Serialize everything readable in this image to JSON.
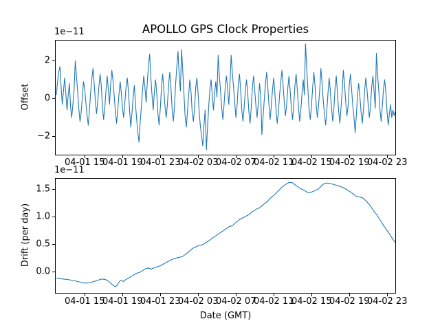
{
  "figure": {
    "background": "#ffffff",
    "text_color": "#000000",
    "line_color": "#1f77b4"
  },
  "chart_data": [
    {
      "type": "line",
      "title": "APOLLO GPS Clock Properties",
      "ylabel": "Offset",
      "y_offset_text": "1e−11",
      "y_unit_multiplier": 1e-11,
      "legend": "none",
      "grid": false,
      "x_axis": {
        "t_origin": "04-01 12:00 (GMT)",
        "t_unit": "hours",
        "t_start": 0,
        "t_end": 36,
        "tick_hours": [
          3,
          7,
          11,
          15,
          19,
          23,
          27,
          31,
          35
        ],
        "tick_labels": [
          "04-01 15",
          "04-01 19",
          "04-01 23",
          "04-02 03",
          "04-02 07",
          "04-02 11",
          "04-02 15",
          "04-02 19",
          "04-02 23"
        ]
      },
      "y_axis": {
        "lim": [
          -2.95,
          3.15
        ],
        "ticks": [
          {
            "v": 2,
            "label": "2"
          },
          {
            "v": 0,
            "label": "0"
          },
          {
            "v": -2,
            "label": "−2"
          }
        ]
      },
      "values": [
        0.2,
        0.9,
        1.4,
        1.7,
        0.6,
        -0.3,
        0.4,
        1.1,
        0.3,
        -0.6,
        0.2,
        0.8,
        -0.4,
        -1.0,
        -0.3,
        0.5,
        2.0,
        1.2,
        0.4,
        -0.5,
        -1.2,
        -0.7,
        0.1,
        0.9,
        0.5,
        -0.2,
        -0.9,
        -1.4,
        -0.6,
        0.3,
        1.0,
        1.6,
        0.8,
        -0.1,
        -0.8,
        -0.2,
        0.6,
        1.3,
        0.7,
        -0.4,
        -1.1,
        -0.5,
        0.4,
        1.2,
        0.5,
        -0.3,
        0.8,
        1.5,
        0.9,
        0.1,
        -0.7,
        -1.3,
        -0.6,
        0.2,
        0.9,
        0.3,
        -0.5,
        -1.0,
        -0.2,
        0.6,
        1.1,
        0.4,
        -0.6,
        -1.5,
        -0.8,
        0.1,
        0.7,
        -0.3,
        -1.1,
        -1.8,
        -2.3,
        -1.2,
        -0.4,
        0.5,
        1.2,
        0.6,
        -0.2,
        0.9,
        1.8,
        2.35,
        1.1,
        0.2,
        -0.6,
        0.4,
        1.0,
        0.3,
        -0.8,
        -1.4,
        -0.5,
        0.6,
        1.3,
        0.5,
        -0.4,
        -1.0,
        -0.3,
        0.7,
        1.4,
        0.6,
        -0.5,
        -1.2,
        -0.4,
        0.8,
        1.7,
        2.5,
        1.3,
        0.4,
        2.6,
        1.5,
        0.3,
        -0.9,
        -1.5,
        -0.7,
        0.2,
        1.0,
        0.4,
        -0.7,
        -1.2,
        -0.5,
        0.6,
        1.1,
        0.3,
        -0.8,
        -1.5,
        -2.0,
        -2.5,
        -1.4,
        -0.6,
        -2.7,
        -1.5,
        -0.4,
        0.5,
        1.0,
        0.2,
        -0.6,
        0.3,
        0.9,
        0.1,
        2.3,
        1.2,
        0.4,
        -0.5,
        -1.1,
        -0.3,
        0.6,
        1.2,
        0.5,
        -0.3,
        0.8,
        2.3,
        1.4,
        0.6,
        -0.2,
        -1.0,
        -0.4,
        0.7,
        1.3,
        0.5,
        -0.6,
        -1.2,
        -0.5,
        0.4,
        1.0,
        0.3,
        -0.7,
        -1.3,
        -0.5,
        0.6,
        1.2,
        0.4,
        -0.4,
        -1.0,
        -0.2,
        0.8,
        0.2,
        -1.9,
        -1.0,
        -0.1,
        0.7,
        1.4,
        0.6,
        -0.3,
        -1.1,
        -0.4,
        0.5,
        1.1,
        0.3,
        -0.6,
        -1.3,
        -0.7,
        0.2,
        0.9,
        1.5,
        0.7,
        -0.2,
        -0.9,
        -0.3,
        0.6,
        1.2,
        0.4,
        -0.5,
        -1.1,
        -0.3,
        0.7,
        1.3,
        0.5,
        -0.4,
        -1.2,
        -0.6,
        0.3,
        1.0,
        0.2,
        2.9,
        1.6,
        0.5,
        -0.6,
        -1.1,
        -0.4,
        0.6,
        1.4,
        0.7,
        -0.3,
        -1.0,
        -0.4,
        0.5,
        1.6,
        0.8,
        -0.1,
        -0.8,
        -1.4,
        -0.6,
        0.3,
        1.1,
        0.4,
        -0.5,
        -1.2,
        -0.5,
        0.6,
        1.2,
        0.3,
        -0.6,
        -1.3,
        -0.5,
        0.4,
        1.5,
        0.8,
        -0.2,
        -0.9,
        -0.4,
        0.7,
        1.3,
        0.5,
        -0.4,
        -1.0,
        -1.8,
        -0.9,
        0.2,
        0.8,
        0.1,
        -0.7,
        -1.3,
        -0.6,
        0.4,
        1.1,
        0.5,
        -0.3,
        -1.0,
        -0.4,
        0.6,
        1.2,
        0.4,
        -0.5,
        2.4,
        1.3,
        0.4,
        -0.6,
        -1.2,
        -0.4,
        0.5,
        1.0,
        0.3,
        -0.7,
        -1.4,
        -0.8,
        -0.3,
        -1.0,
        -0.6,
        -0.9,
        -0.7
      ],
      "line_color": "#1f77b4"
    },
    {
      "type": "line",
      "ylabel": "Drift (per day)",
      "xlabel": "Date (GMT)",
      "y_offset_text": "1e−11",
      "y_unit_multiplier": 1e-11,
      "legend": "none",
      "grid": false,
      "x_axis": {
        "t_origin": "04-01 12:00 (GMT)",
        "t_unit": "hours",
        "t_start": 0,
        "t_end": 36,
        "tick_hours": [
          3,
          7,
          11,
          15,
          19,
          23,
          27,
          31,
          35
        ],
        "tick_labels": [
          "04-01 15",
          "04-01 19",
          "04-01 23",
          "04-02 03",
          "04-02 07",
          "04-02 11",
          "04-02 15",
          "04-02 19",
          "04-02 23"
        ]
      },
      "y_axis": {
        "lim": [
          -0.4,
          1.7
        ],
        "ticks": [
          {
            "v": 1.5,
            "label": "1.5"
          },
          {
            "v": 1.0,
            "label": "1.0"
          },
          {
            "v": 0.5,
            "label": "0.5"
          },
          {
            "v": 0.0,
            "label": "0.0"
          }
        ]
      },
      "points": [
        [
          0,
          -0.12
        ],
        [
          0.7,
          -0.135
        ],
        [
          1.4,
          -0.15
        ],
        [
          2.1,
          -0.175
        ],
        [
          2.6,
          -0.195
        ],
        [
          3.0,
          -0.21
        ],
        [
          3.5,
          -0.205
        ],
        [
          4.0,
          -0.18
        ],
        [
          4.45,
          -0.155
        ],
        [
          4.8,
          -0.135
        ],
        [
          5.2,
          -0.145
        ],
        [
          5.5,
          -0.175
        ],
        [
          5.9,
          -0.235
        ],
        [
          6.2,
          -0.275
        ],
        [
          6.4,
          -0.255
        ],
        [
          6.7,
          -0.175
        ],
        [
          6.85,
          -0.16
        ],
        [
          7.1,
          -0.18
        ],
        [
          7.35,
          -0.145
        ],
        [
          7.7,
          -0.11
        ],
        [
          8.2,
          -0.06
        ],
        [
          8.6,
          -0.025
        ],
        [
          9.0,
          0.0
        ],
        [
          9.3,
          0.04
        ],
        [
          9.7,
          0.065
        ],
        [
          10.05,
          0.045
        ],
        [
          10.5,
          0.08
        ],
        [
          11.0,
          0.105
        ],
        [
          11.5,
          0.155
        ],
        [
          12.0,
          0.2
        ],
        [
          12.45,
          0.235
        ],
        [
          13.0,
          0.26
        ],
        [
          13.3,
          0.27
        ],
        [
          13.8,
          0.33
        ],
        [
          14.4,
          0.42
        ],
        [
          15.0,
          0.47
        ],
        [
          15.5,
          0.49
        ],
        [
          16.0,
          0.545
        ],
        [
          16.6,
          0.62
        ],
        [
          17.2,
          0.69
        ],
        [
          17.8,
          0.76
        ],
        [
          18.3,
          0.82
        ],
        [
          18.6,
          0.83
        ],
        [
          19.0,
          0.895
        ],
        [
          19.5,
          0.96
        ],
        [
          20.0,
          1.0
        ],
        [
          20.4,
          1.04
        ],
        [
          20.75,
          1.09
        ],
        [
          21.2,
          1.14
        ],
        [
          21.5,
          1.16
        ],
        [
          21.9,
          1.22
        ],
        [
          22.3,
          1.27
        ],
        [
          22.6,
          1.33
        ],
        [
          23.1,
          1.4
        ],
        [
          23.5,
          1.47
        ],
        [
          23.9,
          1.54
        ],
        [
          24.3,
          1.59
        ],
        [
          24.6,
          1.62
        ],
        [
          25.0,
          1.615
        ],
        [
          25.3,
          1.57
        ],
        [
          25.8,
          1.51
        ],
        [
          26.3,
          1.47
        ],
        [
          26.6,
          1.43
        ],
        [
          27.0,
          1.445
        ],
        [
          27.4,
          1.475
        ],
        [
          27.7,
          1.5
        ],
        [
          28.0,
          1.55
        ],
        [
          28.25,
          1.59
        ],
        [
          28.6,
          1.61
        ],
        [
          29.0,
          1.6
        ],
        [
          29.4,
          1.58
        ],
        [
          29.8,
          1.56
        ],
        [
          30.3,
          1.53
        ],
        [
          30.6,
          1.5
        ],
        [
          31.0,
          1.46
        ],
        [
          31.4,
          1.41
        ],
        [
          31.7,
          1.37
        ],
        [
          32.1,
          1.355
        ],
        [
          32.4,
          1.34
        ],
        [
          32.8,
          1.28
        ],
        [
          33.2,
          1.2
        ],
        [
          33.5,
          1.12
        ],
        [
          33.9,
          1.03
        ],
        [
          34.2,
          0.95
        ],
        [
          34.6,
          0.84
        ],
        [
          35.0,
          0.74
        ],
        [
          35.4,
          0.64
        ],
        [
          35.7,
          0.56
        ],
        [
          36.0,
          0.5
        ]
      ],
      "line_color": "#1f77b4"
    }
  ]
}
